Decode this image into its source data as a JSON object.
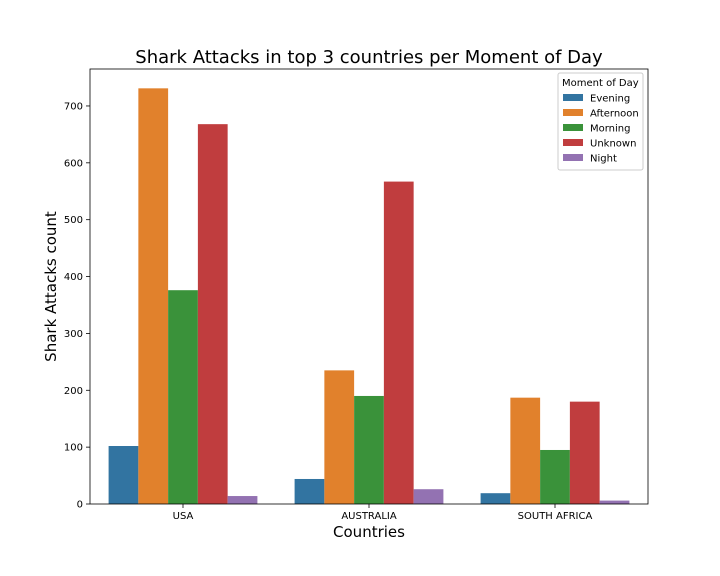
{
  "chart_data": {
    "type": "bar",
    "title": "Shark Attacks in top 3 countries per Moment of Day",
    "xlabel": "Countries",
    "ylabel": "Shark Attacks count",
    "ylim": [
      0,
      765
    ],
    "yticks": [
      0,
      100,
      200,
      300,
      400,
      500,
      600,
      700
    ],
    "categories": [
      "USA",
      "AUSTRALIA",
      "SOUTH AFRICA"
    ],
    "legend_title": "Moment of Day",
    "legend_position": "top-right",
    "series": [
      {
        "name": "Evening",
        "color": "#3274a1",
        "values": [
          102,
          44,
          19
        ]
      },
      {
        "name": "Afternoon",
        "color": "#e1812c",
        "values": [
          731,
          235,
          187
        ]
      },
      {
        "name": "Morning",
        "color": "#3a923a",
        "values": [
          376,
          190,
          95
        ]
      },
      {
        "name": "Unknown",
        "color": "#c03d3e",
        "values": [
          668,
          567,
          180
        ]
      },
      {
        "name": "Night",
        "color": "#9372b2",
        "values": [
          14,
          26,
          6
        ]
      }
    ]
  }
}
